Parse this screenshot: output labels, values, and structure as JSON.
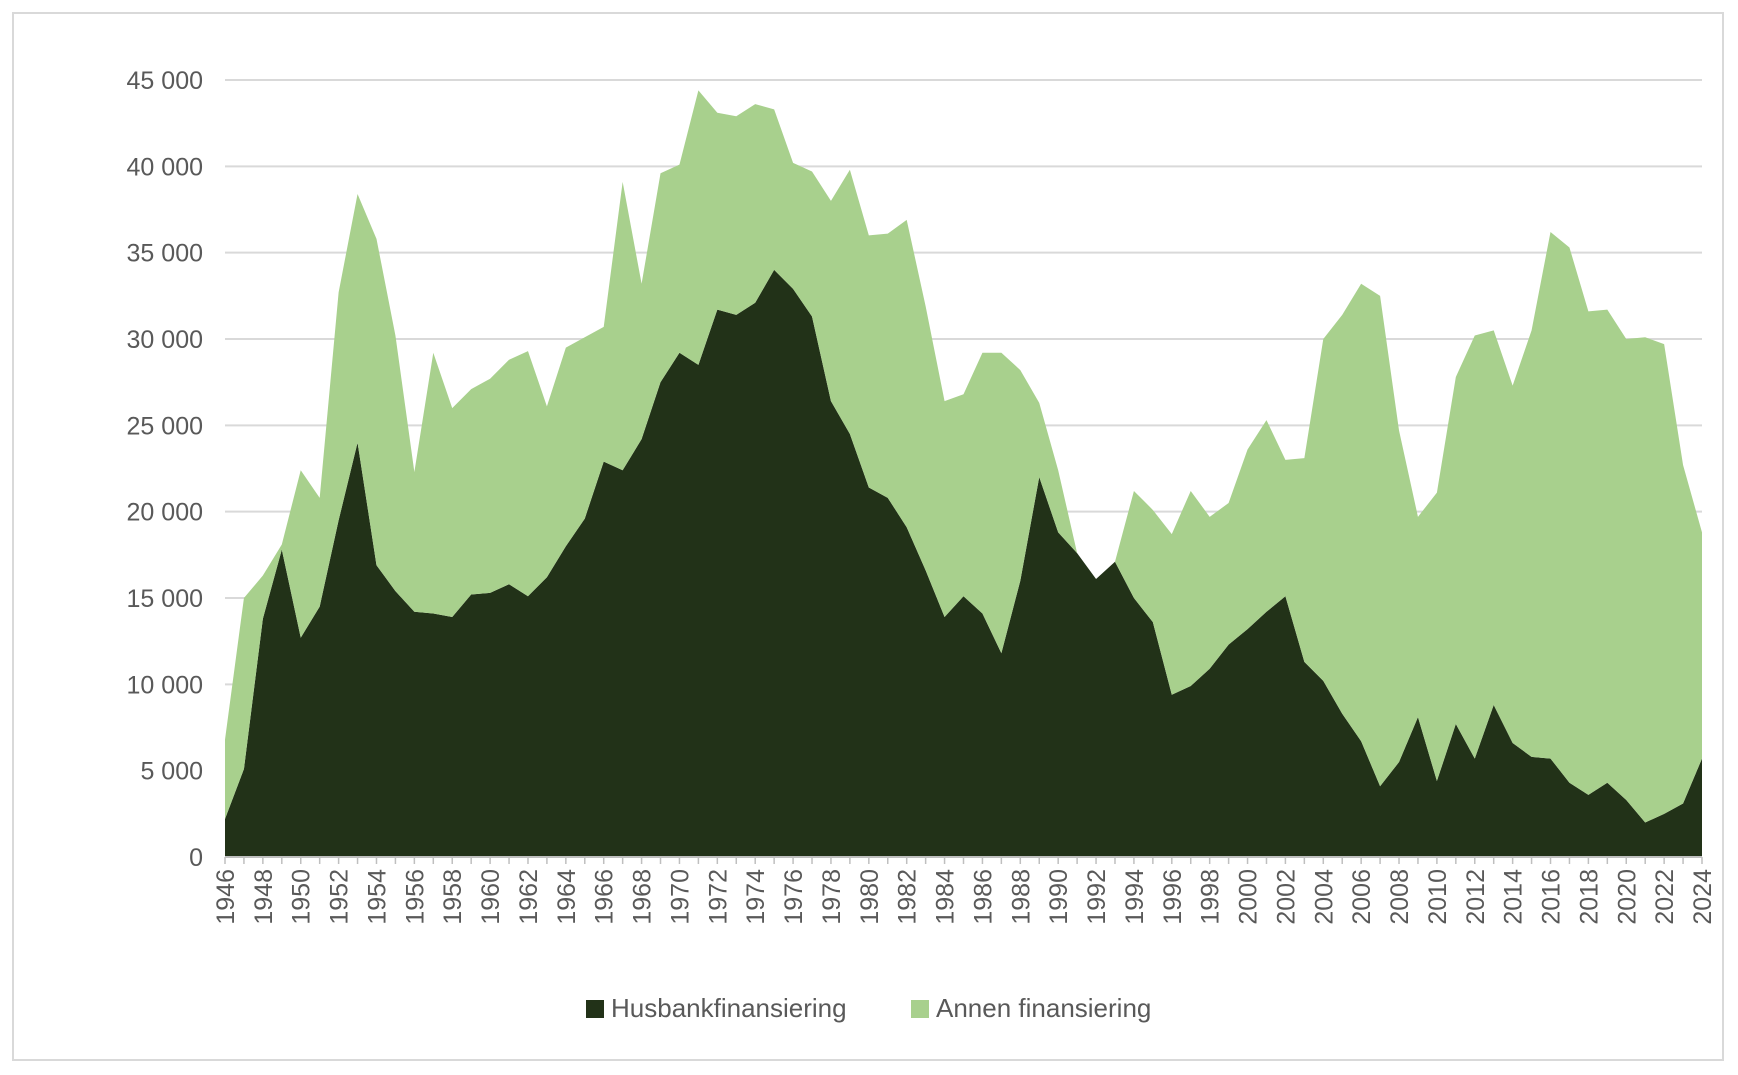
{
  "chart_data": {
    "type": "area",
    "stacked": true,
    "title": "",
    "xlabel": "",
    "ylabel": "",
    "ylim": [
      0,
      45000
    ],
    "yticks": [
      0,
      5000,
      10000,
      15000,
      20000,
      25000,
      30000,
      35000,
      40000,
      45000
    ],
    "ytick_labels": [
      "0",
      "5 000",
      "10 000",
      "15 000",
      "20 000",
      "25 000",
      "30 000",
      "35 000",
      "40 000",
      "45 000"
    ],
    "grid": true,
    "legend_position": "bottom-center",
    "x": [
      1946,
      1947,
      1948,
      1949,
      1950,
      1951,
      1952,
      1953,
      1954,
      1955,
      1956,
      1957,
      1958,
      1959,
      1960,
      1961,
      1962,
      1963,
      1964,
      1965,
      1966,
      1967,
      1968,
      1969,
      1970,
      1971,
      1972,
      1973,
      1974,
      1975,
      1976,
      1977,
      1978,
      1979,
      1980,
      1981,
      1982,
      1983,
      1984,
      1985,
      1986,
      1987,
      1988,
      1989,
      1990,
      1991,
      1992,
      1993,
      1994,
      1995,
      1996,
      1997,
      1998,
      1999,
      2000,
      2001,
      2002,
      2003,
      2004,
      2005,
      2006,
      2007,
      2008,
      2009,
      2010,
      2011,
      2012,
      2013,
      2014,
      2015,
      2016,
      2017,
      2018,
      2019,
      2020,
      2021,
      2022,
      2023,
      2024
    ],
    "xtick_labels": [
      "1946",
      "1948",
      "1950",
      "1952",
      "1954",
      "1956",
      "1958",
      "1960",
      "1962",
      "1964",
      "1966",
      "1968",
      "1970",
      "1972",
      "1974",
      "1976",
      "1978",
      "1980",
      "1982",
      "1984",
      "1986",
      "1988",
      "1990",
      "1992",
      "1994",
      "1996",
      "1998",
      "2000",
      "2002",
      "2004",
      "2006",
      "2008",
      "2010",
      "2012",
      "2014",
      "2016",
      "2018",
      "2020",
      "2022",
      "2024"
    ],
    "series": [
      {
        "name": "Husbankfinansiering",
        "color": "#223218",
        "values": [
          2200,
          5100,
          13800,
          17800,
          12700,
          14500,
          19500,
          24000,
          16900,
          15400,
          14200,
          14100,
          13900,
          15200,
          15300,
          15800,
          15100,
          16200,
          18000,
          19600,
          22900,
          22400,
          24200,
          27500,
          29200,
          28500,
          31700,
          31400,
          32100,
          34000,
          32900,
          31300,
          26400,
          24500,
          21400,
          20800,
          19100,
          16600,
          13900,
          15100,
          14100,
          11800,
          16000,
          22000,
          18800,
          17600,
          16100,
          17100,
          15000,
          13600,
          9400,
          9900,
          10900,
          12300,
          13200,
          14200,
          15100,
          11300,
          10200,
          8300,
          6700,
          4100,
          5500,
          8100,
          4400,
          7700,
          5700,
          8800,
          6600,
          5800,
          5700,
          4300,
          3600,
          4300,
          3300,
          2000,
          2500,
          3100,
          5700
        ]
      },
      {
        "name": "Annen finansiering",
        "color": "#a8d08d",
        "values": [
          4600,
          9900,
          2500,
          300,
          9700,
          6300,
          13200,
          14400,
          18900,
          14800,
          8100,
          15100,
          12100,
          11900,
          12400,
          13000,
          14200,
          9900,
          11500,
          10500,
          7800,
          16700,
          9000,
          12100,
          10900,
          15900,
          11400,
          11500,
          11500,
          9300,
          7300,
          8400,
          11600,
          15300,
          14600,
          15300,
          17800,
          15300,
          12500,
          11700,
          15100,
          17400,
          12200,
          4300,
          3600,
          0,
          0,
          0,
          6200,
          6500,
          9300,
          11300,
          8800,
          8200,
          10400,
          11100,
          7900,
          11800,
          19800,
          23100,
          26500,
          28400,
          19200,
          11600,
          16700,
          20100,
          24500,
          21700,
          20700,
          24700,
          30500,
          31000,
          28000,
          27400,
          26700,
          28100,
          27200,
          19600,
          13100
        ]
      }
    ]
  }
}
